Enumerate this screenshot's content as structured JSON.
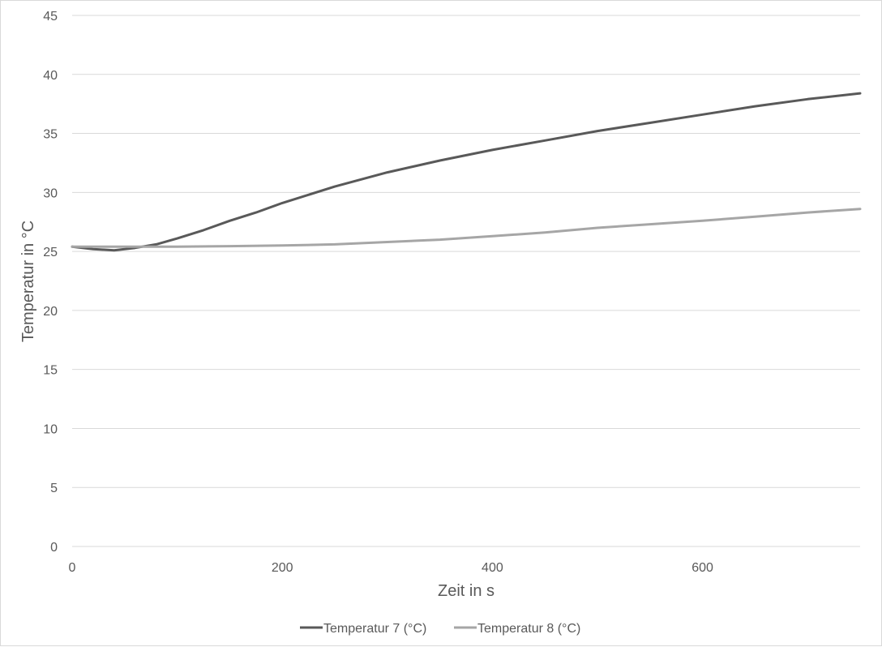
{
  "chart_data": {
    "type": "line",
    "title": "",
    "xlabel": "Zeit in s",
    "ylabel": "Temperatur in °C",
    "xlim": [
      0,
      750
    ],
    "ylim": [
      0,
      45
    ],
    "xticks": [
      0,
      200,
      400,
      600
    ],
    "yticks": [
      0,
      5,
      10,
      15,
      20,
      25,
      30,
      35,
      40,
      45
    ],
    "grid": "horizontal",
    "legend_position": "bottom",
    "series": [
      {
        "name": "Temperatur 7 (°C)",
        "color": "#595959",
        "x": [
          0,
          20,
          40,
          60,
          80,
          100,
          125,
          150,
          175,
          200,
          250,
          300,
          350,
          400,
          450,
          500,
          550,
          600,
          650,
          700,
          750
        ],
        "y": [
          25.4,
          25.2,
          25.1,
          25.3,
          25.6,
          26.1,
          26.8,
          27.6,
          28.3,
          29.1,
          30.5,
          31.7,
          32.7,
          33.6,
          34.4,
          35.2,
          35.9,
          36.6,
          37.3,
          37.9,
          38.4
        ]
      },
      {
        "name": "Temperatur 8 (°C)",
        "color": "#a6a6a6",
        "x": [
          0,
          50,
          100,
          150,
          200,
          250,
          300,
          350,
          400,
          450,
          500,
          550,
          600,
          650,
          700,
          750
        ],
        "y": [
          25.4,
          25.4,
          25.4,
          25.45,
          25.5,
          25.6,
          25.8,
          26.0,
          26.3,
          26.6,
          27.0,
          27.3,
          27.6,
          27.95,
          28.3,
          28.6
        ]
      }
    ]
  }
}
